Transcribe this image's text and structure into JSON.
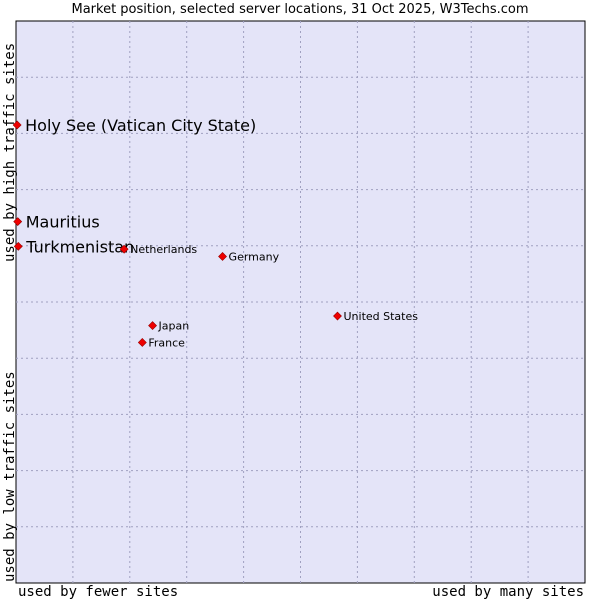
{
  "chart_data": {
    "type": "scatter",
    "title": "Market position, selected server locations, 31 Oct 2025, W3Techs.com",
    "xlabel_low": "used by fewer sites",
    "xlabel_high": "used by many sites",
    "ylabel_low": "used by low traffic sites",
    "ylabel_high": "used by high traffic sites",
    "grid": true,
    "xlim": [
      0,
      100
    ],
    "ylim": [
      0,
      100
    ],
    "points": [
      {
        "label": "Holy See (Vatican City State)",
        "x": 0.2,
        "y": 81.5,
        "highlight": true
      },
      {
        "label": "Mauritius",
        "x": 0.3,
        "y": 64.3,
        "highlight": true
      },
      {
        "label": "Turkmenistan",
        "x": 0.4,
        "y": 59.9,
        "highlight": true
      },
      {
        "label": "Netherlands",
        "x": 19.0,
        "y": 59.4,
        "highlight": false
      },
      {
        "label": "Germany",
        "x": 36.3,
        "y": 58.1,
        "highlight": false
      },
      {
        "label": "United States",
        "x": 56.5,
        "y": 47.5,
        "highlight": false
      },
      {
        "label": "Japan",
        "x": 24.0,
        "y": 45.8,
        "highlight": false
      },
      {
        "label": "France",
        "x": 22.2,
        "y": 42.8,
        "highlight": false
      }
    ]
  },
  "colors": {
    "plot_bg": "#e4e4f8",
    "grid": "#a0a0c0",
    "marker": "#ee0000",
    "border": "#000000"
  }
}
